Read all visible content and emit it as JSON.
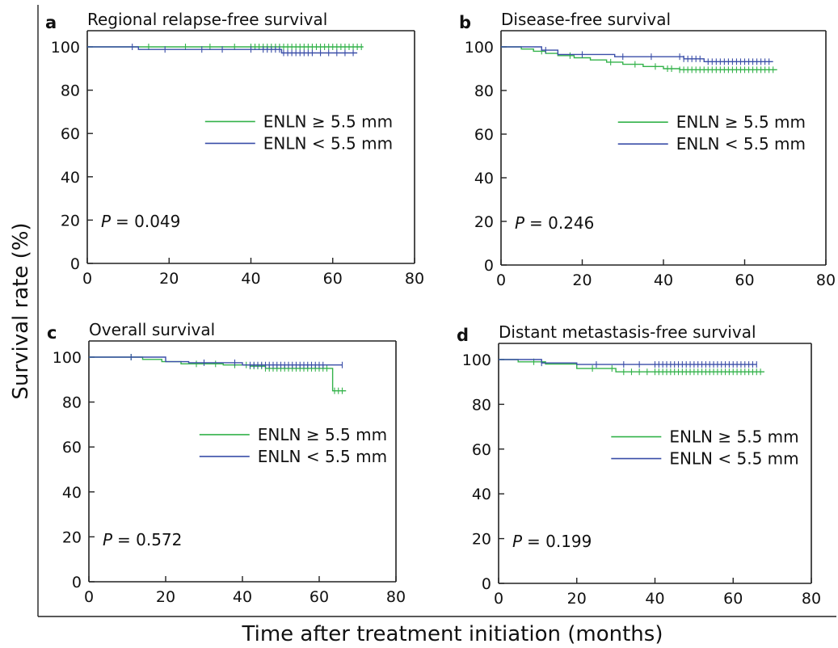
{
  "figure": {
    "ylabel": "Survival rate (%)",
    "xlabel": "Time after treatment initiation (months)"
  },
  "colors": {
    "ge": "#33b24a",
    "lt": "#3a4ea8"
  },
  "chart_data": [
    {
      "type": "line",
      "letter": "a",
      "title": "Regional relapse-free survival",
      "xlim": [
        0,
        80
      ],
      "ylim": [
        0,
        100
      ],
      "xticks": [
        "0",
        "20",
        "40",
        "60",
        "80"
      ],
      "yticks": [
        "0",
        "20",
        "40",
        "60",
        "80",
        "100"
      ],
      "legend_position": "right",
      "p_label": "P",
      "p_value": "= 0.049",
      "series": [
        {
          "name": "ENLN ≥ 5.5 mm",
          "color_key": "ge",
          "x": [
            0,
            67.5
          ],
          "y": [
            100,
            100
          ],
          "censor_x": [
            15,
            24,
            30,
            36,
            40,
            41,
            42,
            43,
            44,
            45,
            46,
            47,
            48,
            49,
            50,
            51,
            52,
            53,
            54,
            55,
            56,
            57,
            58,
            59,
            60,
            61,
            62,
            63,
            64,
            65,
            66,
            67
          ],
          "censor_y": 100
        },
        {
          "name": "ENLN < 5.5 mm",
          "color_key": "lt",
          "x": [
            0,
            12.5,
            12.5,
            47.5,
            47.5,
            66
          ],
          "y": [
            100,
            100,
            98.8,
            98.8,
            97.2,
            97.2
          ],
          "censor_x": [
            11,
            19,
            28,
            33,
            40,
            43,
            44,
            45,
            46,
            47,
            48,
            49,
            50,
            51,
            52,
            53,
            54,
            55,
            57,
            59,
            61,
            63,
            65
          ],
          "censor_y_steps": true
        }
      ]
    },
    {
      "type": "line",
      "letter": "b",
      "title": "Disease-free survival",
      "xlim": [
        0,
        80
      ],
      "ylim": [
        0,
        100
      ],
      "xticks": [
        "0",
        "20",
        "40",
        "60",
        "80"
      ],
      "yticks": [
        "0",
        "20",
        "40",
        "60",
        "80",
        "100"
      ],
      "legend_position": "right",
      "p_label": "P",
      "p_value": "= 0.246",
      "series": [
        {
          "name": "ENLN ≥ 5.5 mm",
          "color_key": "ge",
          "x": [
            0,
            5,
            5,
            8,
            8,
            11,
            11,
            14,
            14,
            18,
            18,
            22,
            22,
            26,
            26,
            30,
            30,
            35,
            35,
            40,
            40,
            44,
            44,
            68
          ],
          "y": [
            100,
            100,
            99,
            99,
            98,
            98,
            97,
            97,
            96,
            96,
            95,
            95,
            94,
            94,
            93,
            93,
            92,
            92,
            91,
            91,
            90,
            90,
            89.5,
            89.5
          ],
          "censor_x": [
            10,
            17,
            27,
            33,
            38,
            41,
            42,
            44,
            45,
            46,
            47,
            48,
            49,
            50,
            51,
            52,
            53,
            54,
            55,
            56,
            57,
            58,
            59,
            60,
            61,
            62,
            63,
            64,
            65,
            66,
            67
          ]
        },
        {
          "name": "ENLN < 5.5 mm",
          "color_key": "lt",
          "x": [
            0,
            10,
            10,
            14,
            14,
            28,
            28,
            45,
            45,
            50,
            50,
            67
          ],
          "y": [
            100,
            100,
            98.5,
            98.5,
            96.5,
            96.5,
            95.5,
            95.5,
            94.5,
            94.5,
            93.2,
            93.2
          ],
          "censor_x": [
            11,
            20,
            30,
            37,
            44,
            45,
            46,
            47,
            48,
            49,
            51,
            52,
            53,
            54,
            55,
            56,
            57,
            58,
            59,
            60,
            61,
            62,
            63,
            64,
            65,
            66
          ]
        }
      ]
    },
    {
      "type": "line",
      "letter": "c",
      "title": "Overall survival",
      "xlim": [
        0,
        80
      ],
      "ylim": [
        0,
        100
      ],
      "xticks": [
        "0",
        "20",
        "40",
        "60",
        "80"
      ],
      "yticks": [
        "0",
        "20",
        "40",
        "60",
        "80",
        "100"
      ],
      "legend_position": "right",
      "p_label": "P",
      "p_value": "= 0.572",
      "series": [
        {
          "name": "ENLN ≥ 5.5 mm",
          "color_key": "ge",
          "x": [
            0,
            14,
            14,
            19,
            19,
            24,
            24,
            35,
            35,
            42,
            42,
            46,
            46,
            63.5,
            63.5,
            67
          ],
          "y": [
            100,
            100,
            99,
            99,
            98,
            98,
            97,
            97,
            96.5,
            96.5,
            96,
            96,
            95,
            95,
            85,
            85
          ],
          "censor_x": [
            11,
            28,
            33,
            38,
            41,
            42,
            43,
            44,
            45,
            46,
            47,
            48,
            49,
            50,
            51,
            52,
            53,
            54,
            55,
            56,
            57,
            58,
            59,
            60,
            61,
            62,
            64,
            65,
            66
          ]
        },
        {
          "name": "ENLN < 5.5 mm",
          "color_key": "lt",
          "x": [
            0,
            20,
            20,
            26,
            26,
            40,
            40,
            66
          ],
          "y": [
            100,
            100,
            98,
            98,
            97.5,
            97.5,
            96.5,
            96.5
          ],
          "censor_x": [
            11,
            30,
            38,
            42,
            43,
            44,
            45,
            46,
            47,
            48,
            49,
            50,
            51,
            52,
            53,
            54,
            55,
            56,
            57,
            58,
            59,
            60,
            61,
            66
          ]
        }
      ]
    },
    {
      "type": "line",
      "letter": "d",
      "title": "Distant metastasis-free survival",
      "xlim": [
        0,
        80
      ],
      "ylim": [
        0,
        100
      ],
      "xticks": [
        "0",
        "20",
        "40",
        "60",
        "80"
      ],
      "yticks": [
        "0",
        "20",
        "40",
        "60",
        "80",
        "100"
      ],
      "legend_position": "right",
      "p_label": "P",
      "p_value": "= 0.199",
      "series": [
        {
          "name": "ENLN ≥ 5.5 mm",
          "color_key": "ge",
          "x": [
            0,
            5,
            5,
            12,
            12,
            20,
            20,
            30,
            30,
            68
          ],
          "y": [
            100,
            100,
            99,
            99,
            98,
            98,
            96,
            96,
            94.5,
            94.5
          ],
          "censor_x": [
            9,
            24,
            29,
            32,
            34,
            36,
            38,
            40,
            41,
            42,
            43,
            44,
            45,
            46,
            47,
            48,
            49,
            50,
            51,
            52,
            53,
            54,
            55,
            56,
            57,
            58,
            59,
            60,
            61,
            62,
            63,
            64,
            65,
            66,
            67
          ]
        },
        {
          "name": "ENLN < 5.5 mm",
          "color_key": "lt",
          "x": [
            0,
            11,
            11,
            20,
            20,
            66
          ],
          "y": [
            100,
            100,
            98.5,
            98.5,
            97.8,
            97.8
          ],
          "censor_x": [
            11,
            25,
            32,
            36,
            40,
            41,
            42,
            43,
            44,
            45,
            46,
            47,
            48,
            49,
            50,
            51,
            52,
            53,
            54,
            55,
            56,
            57,
            58,
            59,
            60,
            61,
            62,
            63,
            64,
            65,
            66
          ]
        }
      ]
    }
  ]
}
